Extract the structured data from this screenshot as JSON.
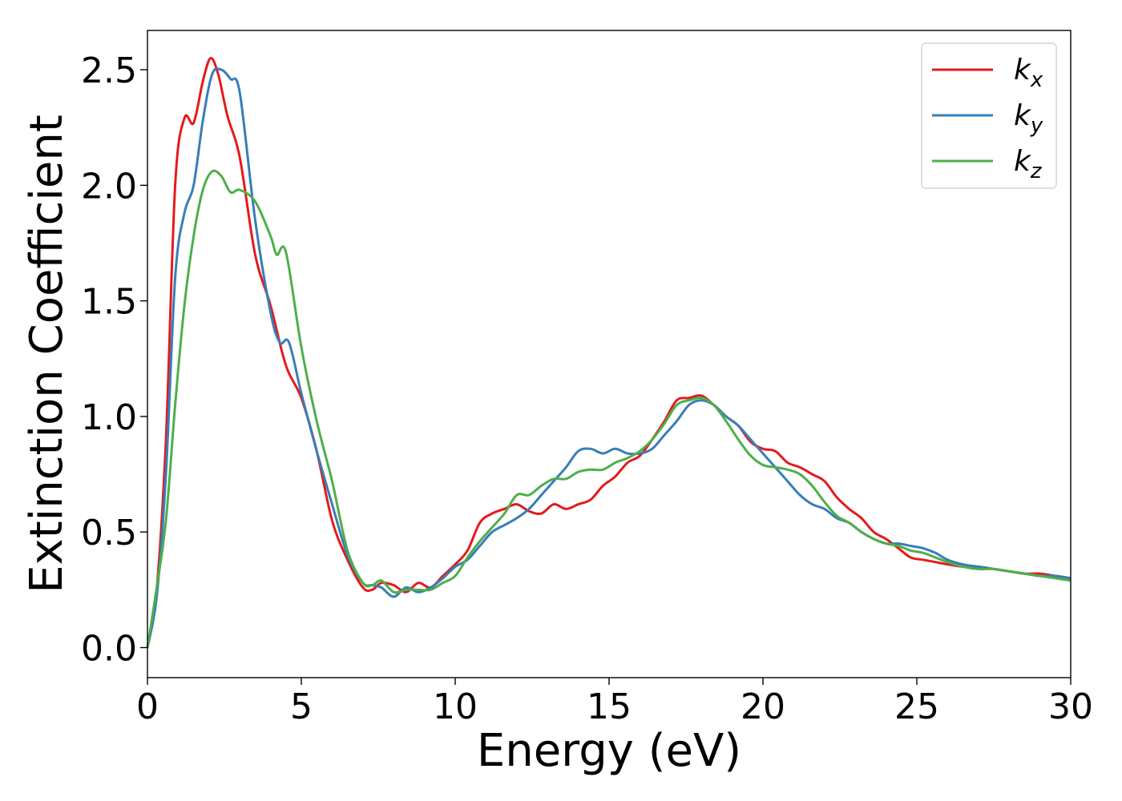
{
  "chart_data": {
    "type": "line",
    "title": "",
    "xlabel": "Energy (eV)",
    "ylabel": "Extinction Coefficient",
    "xlim": [
      0,
      30
    ],
    "ylim": [
      -0.13,
      2.67
    ],
    "xticks": [
      0,
      5,
      10,
      15,
      20,
      25,
      30
    ],
    "xtick_labels": [
      "0",
      "5",
      "10",
      "15",
      "20",
      "25",
      "30"
    ],
    "yticks": [
      0.0,
      0.5,
      1.0,
      1.5,
      2.0,
      2.5
    ],
    "ytick_labels": [
      "0.0",
      "0.5",
      "1.0",
      "1.5",
      "2.0",
      "2.5"
    ],
    "grid": false,
    "legend_position": "top-right",
    "series": [
      {
        "name": "k",
        "subscript": "x",
        "color": "#e41a1c",
        "x": [
          0,
          0.3,
          0.6,
          0.9,
          1.2,
          1.5,
          1.8,
          2.05,
          2.3,
          2.6,
          3.0,
          3.5,
          4.0,
          4.5,
          5.0,
          5.5,
          6.0,
          6.5,
          7.0,
          7.3,
          7.6,
          8.0,
          8.4,
          8.8,
          9.2,
          9.6,
          10.0,
          10.4,
          10.8,
          11.2,
          11.6,
          12.0,
          12.4,
          12.8,
          13.2,
          13.6,
          14.0,
          14.4,
          14.8,
          15.2,
          15.6,
          16.0,
          16.4,
          16.8,
          17.2,
          17.6,
          18.0,
          18.4,
          18.8,
          19.2,
          19.6,
          20.0,
          20.4,
          20.8,
          21.2,
          21.6,
          22.0,
          22.4,
          22.8,
          23.2,
          23.6,
          24.0,
          24.4,
          24.8,
          25.2,
          25.6,
          26.0,
          26.5,
          27.0,
          27.5,
          28.0,
          28.5,
          29.0,
          29.5,
          30.0
        ],
        "values": [
          0.0,
          0.25,
          0.9,
          2.0,
          2.29,
          2.27,
          2.45,
          2.55,
          2.48,
          2.3,
          2.12,
          1.7,
          1.48,
          1.22,
          1.08,
          0.85,
          0.55,
          0.38,
          0.26,
          0.25,
          0.28,
          0.27,
          0.24,
          0.28,
          0.26,
          0.31,
          0.36,
          0.42,
          0.54,
          0.58,
          0.6,
          0.62,
          0.59,
          0.58,
          0.62,
          0.6,
          0.62,
          0.64,
          0.7,
          0.74,
          0.8,
          0.83,
          0.9,
          0.98,
          1.07,
          1.08,
          1.09,
          1.05,
          1.0,
          0.96,
          0.89,
          0.86,
          0.85,
          0.8,
          0.78,
          0.75,
          0.72,
          0.65,
          0.6,
          0.56,
          0.5,
          0.47,
          0.43,
          0.39,
          0.38,
          0.37,
          0.36,
          0.35,
          0.35,
          0.34,
          0.33,
          0.32,
          0.32,
          0.31,
          0.3
        ]
      },
      {
        "name": "k",
        "subscript": "y",
        "color": "#377eb8",
        "x": [
          0,
          0.3,
          0.6,
          0.9,
          1.2,
          1.5,
          1.8,
          2.1,
          2.4,
          2.7,
          3.0,
          3.5,
          4.0,
          4.3,
          4.6,
          5.0,
          5.5,
          6.0,
          6.5,
          7.0,
          7.3,
          7.6,
          8.0,
          8.4,
          8.8,
          9.2,
          9.6,
          10.0,
          10.4,
          10.8,
          11.2,
          11.6,
          12.0,
          12.4,
          12.8,
          13.2,
          13.6,
          14.0,
          14.4,
          14.8,
          15.2,
          15.6,
          16.0,
          16.4,
          16.8,
          17.2,
          17.6,
          18.0,
          18.4,
          18.8,
          19.2,
          19.6,
          20.0,
          20.4,
          20.8,
          21.2,
          21.6,
          22.0,
          22.4,
          22.8,
          23.2,
          23.6,
          24.0,
          24.4,
          24.8,
          25.2,
          25.6,
          26.0,
          26.5,
          27.0,
          27.5,
          28.0,
          28.5,
          29.0,
          29.5,
          30.0
        ],
        "values": [
          0.0,
          0.22,
          0.75,
          1.6,
          1.88,
          2.0,
          2.28,
          2.48,
          2.5,
          2.46,
          2.4,
          1.85,
          1.45,
          1.32,
          1.32,
          1.1,
          0.85,
          0.62,
          0.4,
          0.28,
          0.27,
          0.26,
          0.22,
          0.26,
          0.24,
          0.26,
          0.3,
          0.35,
          0.38,
          0.44,
          0.5,
          0.53,
          0.56,
          0.6,
          0.66,
          0.72,
          0.78,
          0.85,
          0.86,
          0.84,
          0.86,
          0.84,
          0.84,
          0.86,
          0.92,
          0.98,
          1.05,
          1.07,
          1.05,
          1.0,
          0.96,
          0.9,
          0.84,
          0.78,
          0.72,
          0.66,
          0.62,
          0.6,
          0.56,
          0.54,
          0.5,
          0.47,
          0.45,
          0.45,
          0.44,
          0.43,
          0.41,
          0.38,
          0.36,
          0.35,
          0.34,
          0.33,
          0.32,
          0.31,
          0.31,
          0.3
        ]
      },
      {
        "name": "k",
        "subscript": "z",
        "color": "#4daf4a",
        "x": [
          0,
          0.3,
          0.6,
          0.9,
          1.2,
          1.5,
          1.8,
          2.1,
          2.4,
          2.7,
          3.0,
          3.5,
          4.0,
          4.2,
          4.5,
          5.0,
          5.5,
          6.0,
          6.5,
          7.0,
          7.3,
          7.6,
          8.0,
          8.4,
          8.8,
          9.2,
          9.6,
          10.0,
          10.4,
          10.8,
          11.2,
          11.6,
          12.0,
          12.4,
          12.8,
          13.2,
          13.6,
          14.0,
          14.4,
          14.8,
          15.2,
          15.6,
          16.0,
          16.4,
          16.8,
          17.2,
          17.6,
          18.0,
          18.4,
          18.8,
          19.2,
          19.6,
          20.0,
          20.4,
          20.8,
          21.2,
          21.6,
          22.0,
          22.4,
          22.8,
          23.2,
          23.6,
          24.0,
          24.4,
          24.8,
          25.2,
          25.6,
          26.0,
          26.5,
          27.0,
          27.5,
          28.0,
          28.5,
          29.0,
          29.5,
          30.0
        ],
        "values": [
          0.0,
          0.26,
          0.55,
          1.05,
          1.48,
          1.78,
          1.98,
          2.06,
          2.04,
          1.97,
          1.98,
          1.93,
          1.78,
          1.7,
          1.71,
          1.3,
          0.98,
          0.72,
          0.42,
          0.28,
          0.27,
          0.29,
          0.24,
          0.25,
          0.25,
          0.25,
          0.28,
          0.31,
          0.39,
          0.46,
          0.52,
          0.58,
          0.66,
          0.66,
          0.7,
          0.73,
          0.73,
          0.76,
          0.77,
          0.77,
          0.8,
          0.82,
          0.85,
          0.9,
          0.97,
          1.05,
          1.07,
          1.08,
          1.05,
          0.98,
          0.9,
          0.83,
          0.79,
          0.78,
          0.77,
          0.75,
          0.7,
          0.63,
          0.57,
          0.54,
          0.5,
          0.47,
          0.45,
          0.44,
          0.42,
          0.41,
          0.39,
          0.37,
          0.35,
          0.34,
          0.34,
          0.33,
          0.32,
          0.31,
          0.3,
          0.29
        ]
      }
    ]
  }
}
